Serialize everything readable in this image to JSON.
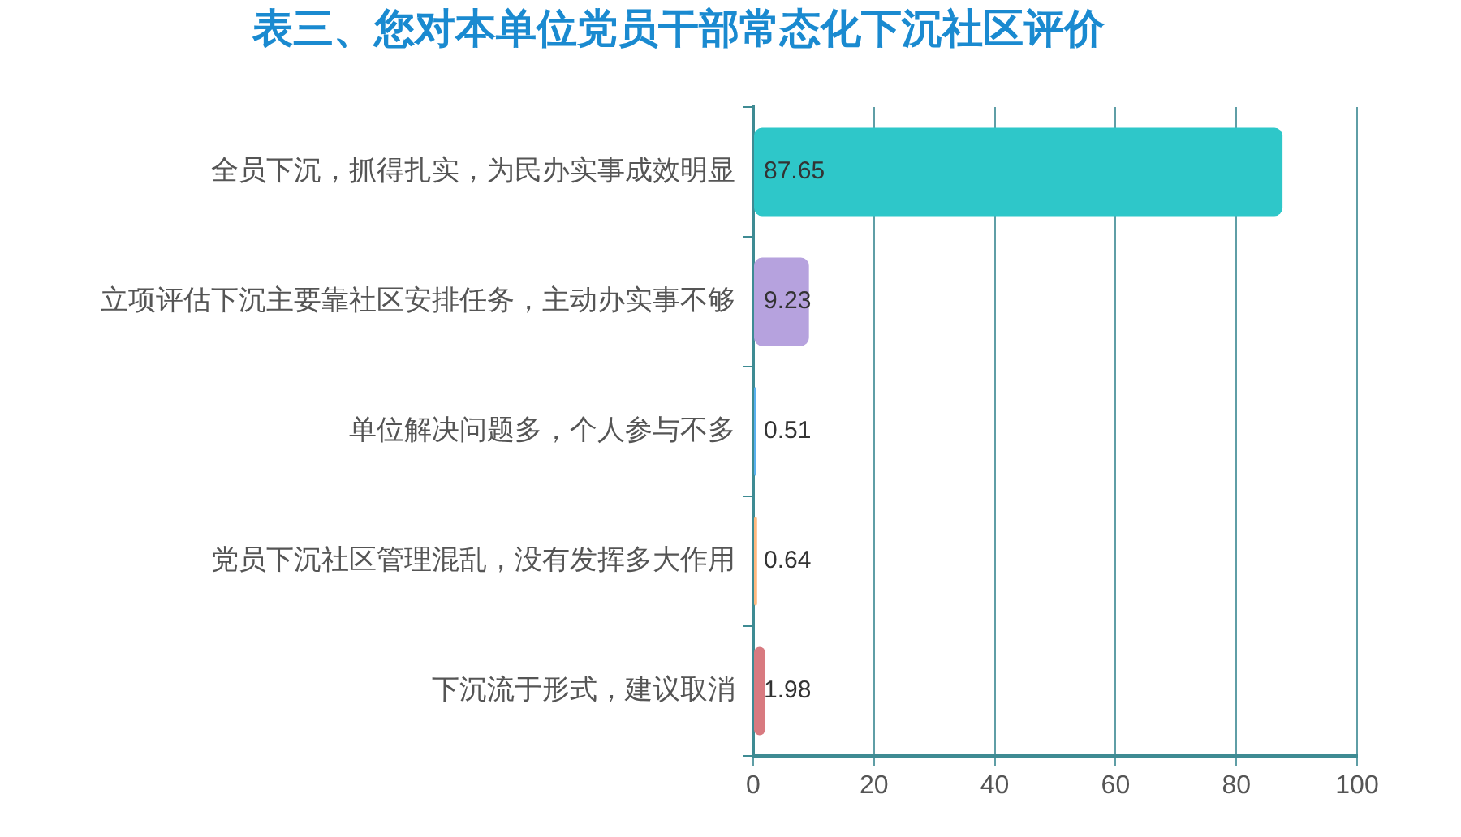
{
  "chart_data": {
    "type": "bar",
    "orientation": "horizontal",
    "title": "表三、您对本单位党员干部常态化下沉社区评价",
    "categories": [
      "全员下沉，抓得扎实，为民办实事成效明显",
      "立项评估下沉主要靠社区安排任务，主动办实事不够",
      "单位解决问题多，个人参与不多",
      "党员下沉社区管理混乱，没有发挥多大作用",
      "下沉流于形式，建议取消"
    ],
    "values": [
      87.65,
      9.23,
      0.51,
      0.64,
      1.98
    ],
    "colors": [
      "#2ec7c9",
      "#b6a2de",
      "#5ab1ef",
      "#ffb980",
      "#d87a80"
    ],
    "xlim": [
      0,
      100
    ],
    "xticks": [
      0,
      20,
      40,
      60,
      80,
      100
    ],
    "grid": "x",
    "data_labels": true,
    "legend": false
  }
}
